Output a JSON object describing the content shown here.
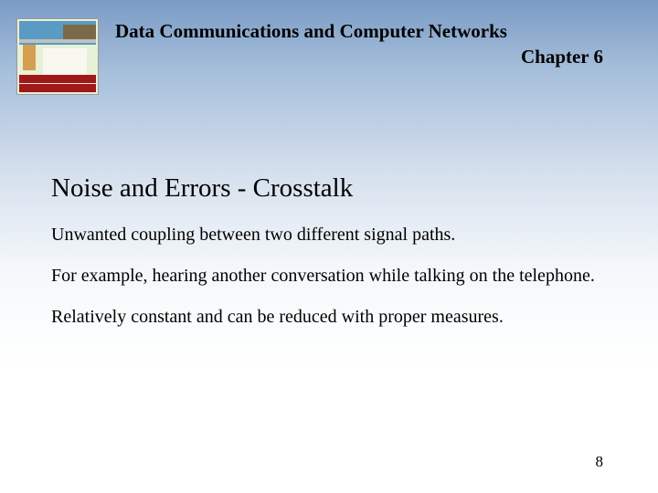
{
  "header": {
    "course_title": "Data Communications and Computer Networks",
    "chapter": "Chapter 6"
  },
  "content": {
    "title": "Noise and Errors - Crosstalk",
    "paragraphs": [
      "Unwanted coupling between two different signal paths.",
      "For example, hearing another conversation while talking on the telephone.",
      "Relatively constant and can be reduced with proper measures."
    ]
  },
  "page_number": "8",
  "style": {
    "gradient_top": "#7a9bc4",
    "gradient_bottom": "#ffffff",
    "text_color": "#000000",
    "font_family": "Times New Roman",
    "title_fontsize": 29,
    "header_fontsize": 21,
    "body_fontsize": 20,
    "pagenum_fontsize": 17
  }
}
